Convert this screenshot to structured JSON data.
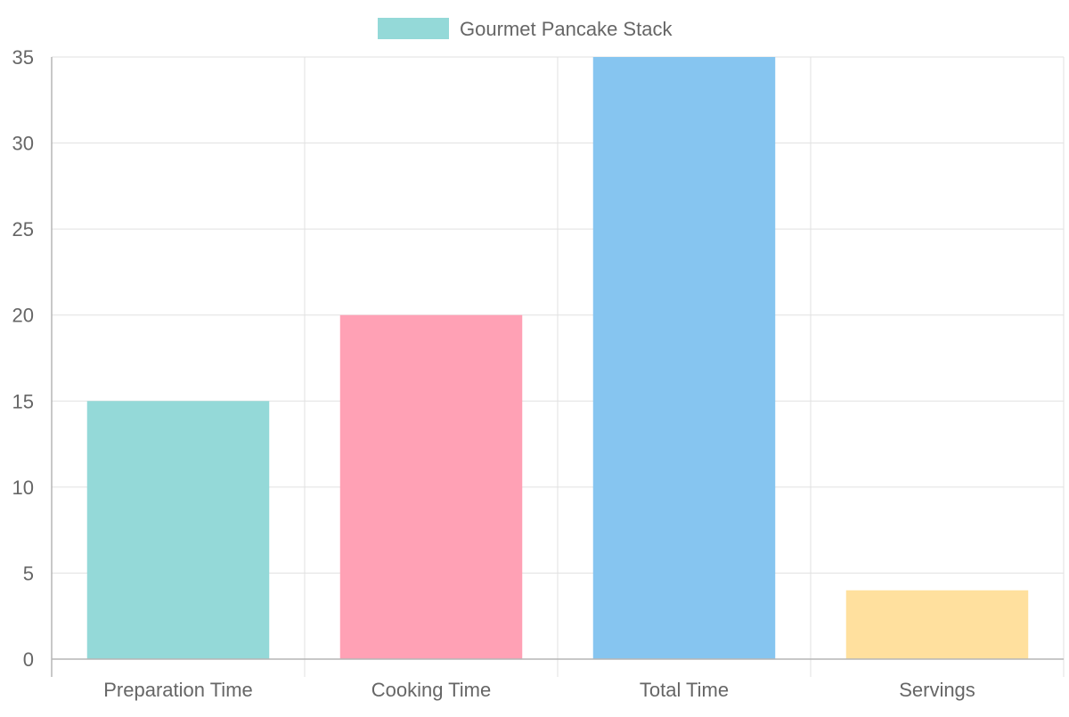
{
  "chart_data": {
    "type": "bar",
    "categories": [
      "Preparation Time",
      "Cooking Time",
      "Total Time",
      "Servings"
    ],
    "series": [
      {
        "name": "Gourmet Pancake Stack",
        "values": [
          15,
          20,
          35,
          4
        ],
        "colors": [
          "#94d9d8",
          "#ffa1b5",
          "#86c5f0",
          "#ffe09e"
        ]
      }
    ],
    "ylim": [
      0,
      35
    ],
    "yticks": [
      0,
      5,
      10,
      15,
      20,
      25,
      30,
      35
    ],
    "grid": true,
    "legend_position": "top-center",
    "title": "",
    "xlabel": "",
    "ylabel": ""
  }
}
